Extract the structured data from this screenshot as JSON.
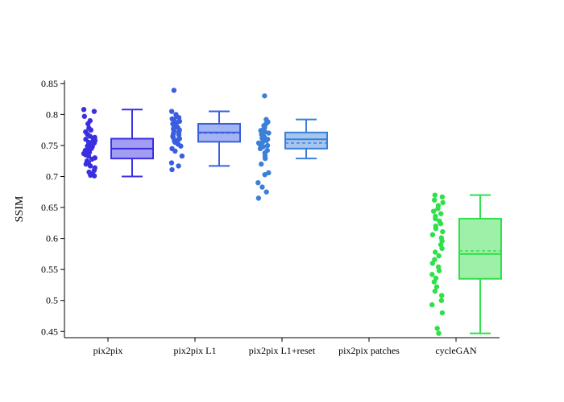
{
  "chart_data": {
    "type": "box",
    "title": "",
    "xlabel": "",
    "ylabel": "SSIM",
    "ylim": [
      0.44,
      0.855
    ],
    "yticks": [
      0.45,
      0.5,
      0.55,
      0.6,
      0.65,
      0.7,
      0.75,
      0.8,
      0.85
    ],
    "ytick_labels": [
      "0.45",
      "0.5",
      "0.55",
      "0.6",
      "0.65",
      "0.7",
      "0.75",
      "0.8",
      "0.85"
    ],
    "grid": false,
    "legend": "none",
    "categories": [
      "pix2pix",
      "pix2pix L1",
      "pix2pix L1+reset",
      "pix2pix patches",
      "cycleGAN"
    ],
    "series": [
      {
        "category": "pix2pix",
        "color": "#3a2fe0",
        "fill": "#a29cf3",
        "q1": 0.729,
        "median": 0.745,
        "q3": 0.761,
        "mean": 0.745,
        "whisker_low": 0.7,
        "whisker_high": 0.808,
        "points": [
          0.808,
          0.805,
          0.797,
          0.79,
          0.785,
          0.778,
          0.775,
          0.772,
          0.768,
          0.765,
          0.763,
          0.762,
          0.76,
          0.758,
          0.757,
          0.755,
          0.754,
          0.752,
          0.75,
          0.749,
          0.748,
          0.746,
          0.745,
          0.744,
          0.742,
          0.74,
          0.739,
          0.737,
          0.735,
          0.733,
          0.73,
          0.728,
          0.725,
          0.722,
          0.72,
          0.717,
          0.714,
          0.71,
          0.707,
          0.704,
          0.702,
          0.701
        ]
      },
      {
        "category": "pix2pix L1",
        "color": "#3a5ee0",
        "fill": "#a4b4f3",
        "q1": 0.756,
        "median": 0.771,
        "q3": 0.785,
        "mean": 0.77,
        "whisker_low": 0.717,
        "whisker_high": 0.805,
        "points": [
          0.839,
          0.805,
          0.8,
          0.797,
          0.795,
          0.793,
          0.791,
          0.789,
          0.787,
          0.785,
          0.783,
          0.781,
          0.779,
          0.777,
          0.775,
          0.773,
          0.771,
          0.769,
          0.767,
          0.765,
          0.763,
          0.761,
          0.759,
          0.757,
          0.755,
          0.752,
          0.749,
          0.745,
          0.741,
          0.733,
          0.722,
          0.717,
          0.711
        ]
      },
      {
        "category": "pix2pix L1+reset",
        "color": "#3a80d9",
        "fill": "#a7c6ee",
        "q1": 0.745,
        "median": 0.76,
        "q3": 0.771,
        "mean": 0.754,
        "whisker_low": 0.729,
        "whisker_high": 0.792,
        "points": [
          0.83,
          0.792,
          0.788,
          0.785,
          0.782,
          0.779,
          0.776,
          0.774,
          0.772,
          0.77,
          0.768,
          0.766,
          0.764,
          0.762,
          0.76,
          0.758,
          0.756,
          0.754,
          0.752,
          0.75,
          0.748,
          0.745,
          0.742,
          0.738,
          0.733,
          0.729,
          0.72,
          0.706,
          0.703,
          0.69,
          0.683,
          0.675,
          0.665
        ]
      },
      {
        "category": "pix2pix patches",
        "color": "#2aa5c0",
        "fill": "#a0dbe6",
        "q1": null,
        "median": null,
        "q3": null,
        "mean": null,
        "whisker_low": null,
        "whisker_high": null,
        "points": []
      },
      {
        "category": "cycleGAN",
        "color": "#2ee04a",
        "fill": "#9ef0a8",
        "q1": 0.535,
        "median": 0.575,
        "q3": 0.632,
        "mean": 0.58,
        "whisker_low": 0.447,
        "whisker_high": 0.67,
        "points": [
          0.67,
          0.667,
          0.662,
          0.658,
          0.653,
          0.648,
          0.644,
          0.64,
          0.636,
          0.632,
          0.628,
          0.624,
          0.62,
          0.616,
          0.611,
          0.606,
          0.601,
          0.596,
          0.59,
          0.584,
          0.578,
          0.572,
          0.566,
          0.56,
          0.554,
          0.548,
          0.542,
          0.536,
          0.53,
          0.522,
          0.515,
          0.508,
          0.5,
          0.493,
          0.48,
          0.455,
          0.447
        ]
      }
    ]
  }
}
